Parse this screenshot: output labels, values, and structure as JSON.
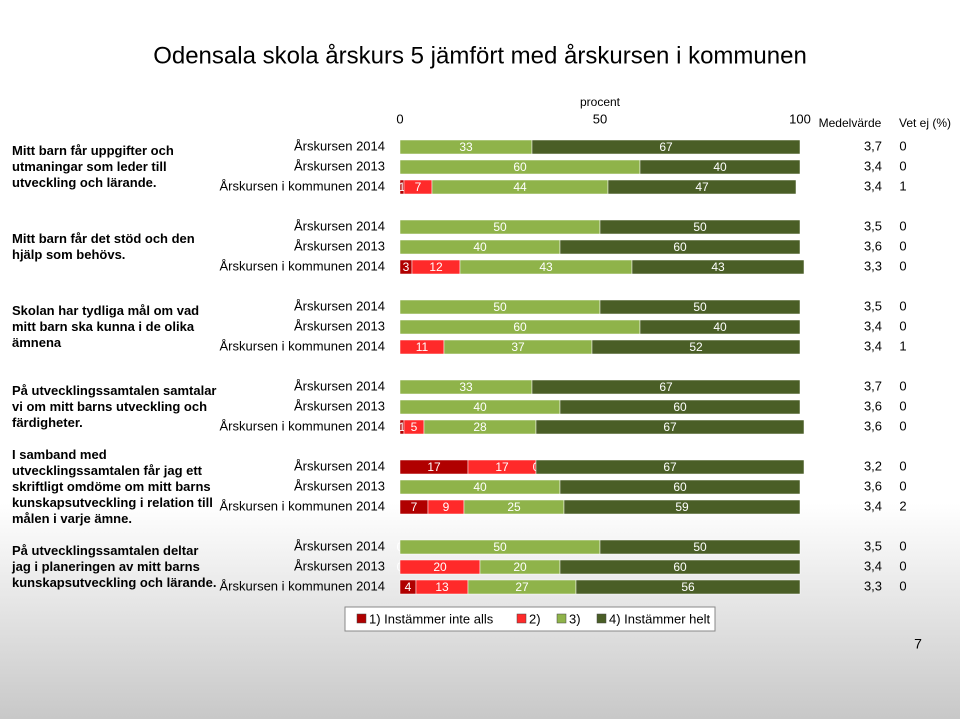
{
  "chart_data": {
    "type": "stacked_bar",
    "title": "Odensala skola årskurs 5 jämfört med årskursen i kommunen",
    "x_label": "procent",
    "xlim": [
      0,
      100
    ],
    "xticks": [
      0,
      50,
      100
    ],
    "mean_header": "Medelvärde",
    "dont_know_header": "Vet ej (%)",
    "series": [
      {
        "name": "1) Instämmer inte alls",
        "color": "#b00000"
      },
      {
        "name": "2)",
        "color": "#ff2a2a"
      },
      {
        "name": "3)",
        "color": "#8fb34a"
      },
      {
        "name": "4) Instämmer helt",
        "color": "#4a5e26"
      }
    ],
    "groups": [
      {
        "question": "Mitt barn får uppgifter och utmaningar som leder till utveckling och lärande.",
        "rows": [
          {
            "label": "Årskursen 2014",
            "values": [
              0,
              0,
              33,
              67
            ],
            "mean": "3,7",
            "dont_know": 0
          },
          {
            "label": "Årskursen 2013",
            "values": [
              0,
              0,
              60,
              40
            ],
            "mean": "3,4",
            "dont_know": 0
          },
          {
            "label": "Årskursen i kommunen 2014",
            "values": [
              1,
              7,
              44,
              47
            ],
            "mean": "3,4",
            "dont_know": 1
          }
        ]
      },
      {
        "question": "Mitt barn får det stöd och den hjälp som behövs.",
        "rows": [
          {
            "label": "Årskursen 2014",
            "values": [
              0,
              0,
              50,
              50
            ],
            "mean": "3,5",
            "dont_know": 0
          },
          {
            "label": "Årskursen 2013",
            "values": [
              0,
              0,
              40,
              60
            ],
            "mean": "3,6",
            "dont_know": 0
          },
          {
            "label": "Årskursen i kommunen 2014",
            "values": [
              3,
              12,
              43,
              43
            ],
            "mean": "3,3",
            "dont_know": 0
          }
        ]
      },
      {
        "question": "Skolan har tydliga mål om vad mitt barn ska kunna i de olika ämnena",
        "rows": [
          {
            "label": "Årskursen 2014",
            "values": [
              0,
              0,
              50,
              50
            ],
            "mean": "3,5",
            "dont_know": 0
          },
          {
            "label": "Årskursen 2013",
            "values": [
              0,
              0,
              60,
              40
            ],
            "mean": "3,4",
            "dont_know": 0
          },
          {
            "label": "Årskursen i kommunen 2014",
            "values": [
              0,
              11,
              37,
              52
            ],
            "mean": "3,4",
            "dont_know": 1
          }
        ]
      },
      {
        "question": "På utvecklingssamtalen samtalar vi om mitt barns utveckling och färdigheter.",
        "rows": [
          {
            "label": "Årskursen 2014",
            "values": [
              0,
              0,
              33,
              67
            ],
            "mean": "3,7",
            "dont_know": 0
          },
          {
            "label": "Årskursen 2013",
            "values": [
              0,
              0,
              40,
              60
            ],
            "mean": "3,6",
            "dont_know": 0
          },
          {
            "label": "Årskursen i kommunen 2014",
            "values": [
              1,
              5,
              28,
              67
            ],
            "mean": "3,6",
            "dont_know": 0
          }
        ]
      },
      {
        "question": "I samband med utvecklingssamtalen får jag ett skriftligt omdöme om mitt barns kunskapsutveckling i relation till målen i varje ämne.",
        "rows": [
          {
            "label": "Årskursen 2014",
            "values": [
              17,
              17,
              0,
              67
            ],
            "mean": "3,2",
            "dont_know": 0
          },
          {
            "label": "Årskursen 2013",
            "values": [
              0,
              0,
              40,
              60
            ],
            "mean": "3,6",
            "dont_know": 0
          },
          {
            "label": "Årskursen i kommunen 2014",
            "values": [
              7,
              9,
              25,
              59
            ],
            "mean": "3,4",
            "dont_know": 2
          }
        ]
      },
      {
        "question": "På utvecklingssamtalen deltar jag i planeringen av mitt barns kunskapsutveckling och lärande.",
        "rows": [
          {
            "label": "Årskursen 2014",
            "values": [
              0,
              0,
              50,
              50
            ],
            "mean": "3,5",
            "dont_know": 0
          },
          {
            "label": "Årskursen 2013",
            "values": [
              0,
              20,
              20,
              60
            ],
            "mean": "3,4",
            "dont_know": 0
          },
          {
            "label": "Årskursen i kommunen 2014",
            "values": [
              4,
              13,
              27,
              56
            ],
            "mean": "3,3",
            "dont_know": 0
          }
        ]
      }
    ]
  },
  "page_number": "7"
}
